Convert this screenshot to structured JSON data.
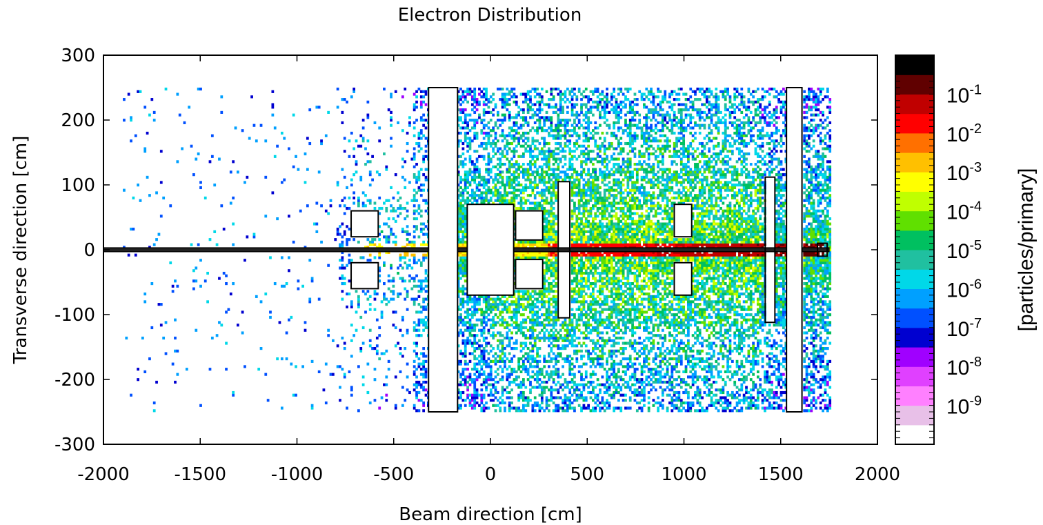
{
  "chart_data": {
    "type": "heatmap",
    "title": "Electron Distribution",
    "xlabel": "Beam direction [cm]",
    "ylabel": "Transverse direction [cm]",
    "xlim": [
      -2000,
      2000
    ],
    "ylim": [
      -300,
      300
    ],
    "x_ticks": [
      -2000,
      -1500,
      -1000,
      -500,
      0,
      500,
      1000,
      1500,
      2000
    ],
    "y_ticks": [
      300,
      200,
      100,
      0,
      -100,
      -200,
      -300
    ],
    "colorbar": {
      "label": "[particles/primary]",
      "scale": "log",
      "range": [
        1e-10,
        1
      ],
      "ticks": [
        {
          "base": "10",
          "exp": "-1",
          "value": 0.1
        },
        {
          "base": "10",
          "exp": "-2",
          "value": 0.01
        },
        {
          "base": "10",
          "exp": "-3",
          "value": 0.001
        },
        {
          "base": "10",
          "exp": "-4",
          "value": 0.0001
        },
        {
          "base": "10",
          "exp": "-5",
          "value": 1e-05
        },
        {
          "base": "10",
          "exp": "-6",
          "value": 1e-06
        },
        {
          "base": "10",
          "exp": "-7",
          "value": 1e-07
        },
        {
          "base": "10",
          "exp": "-8",
          "value": 1e-08
        },
        {
          "base": "10",
          "exp": "-9",
          "value": 1e-09
        }
      ],
      "colors": [
        "#ffffff",
        "#e8c0e8",
        "#ff80ff",
        "#e040ff",
        "#a000ff",
        "#0000d0",
        "#0050ff",
        "#00a0ff",
        "#00d8e8",
        "#20c0a0",
        "#00c060",
        "#60e000",
        "#c0ff00",
        "#ffff00",
        "#ffc000",
        "#ff7000",
        "#ff0000",
        "#c00000",
        "#600000",
        "#000000"
      ]
    },
    "geometry": [
      {
        "name": "beam-pipe",
        "x": [
          -2000,
          1750
        ],
        "y": [
          -3,
          3
        ]
      },
      {
        "name": "block-left-upper",
        "x": [
          -720,
          -580
        ],
        "y": [
          20,
          60
        ]
      },
      {
        "name": "block-left-lower",
        "x": [
          -720,
          -580
        ],
        "y": [
          -60,
          -20
        ]
      },
      {
        "name": "tall-slab",
        "x": [
          -320,
          -170
        ],
        "y": [
          -250,
          250
        ]
      },
      {
        "name": "magnet-box",
        "x": [
          -120,
          120
        ],
        "y": [
          -70,
          70
        ]
      },
      {
        "name": "block-mid-upper",
        "x": [
          130,
          270
        ],
        "y": [
          15,
          60
        ]
      },
      {
        "name": "block-mid-lower",
        "x": [
          130,
          270
        ],
        "y": [
          -60,
          -15
        ]
      },
      {
        "name": "plate-400",
        "x": [
          350,
          410
        ],
        "y": [
          -105,
          105
        ]
      },
      {
        "name": "block-1000-upper",
        "x": [
          950,
          1040
        ],
        "y": [
          20,
          70
        ]
      },
      {
        "name": "block-1000-lower",
        "x": [
          950,
          1040
        ],
        "y": [
          -70,
          -20
        ]
      },
      {
        "name": "plate-1440",
        "x": [
          1420,
          1470
        ],
        "y": [
          -112,
          112
        ]
      },
      {
        "name": "wall-1550",
        "x": [
          1530,
          1610
        ],
        "y": [
          -250,
          250
        ]
      },
      {
        "name": "end-cap",
        "x": [
          1690,
          1740
        ],
        "y": [
          -10,
          10
        ]
      }
    ]
  }
}
